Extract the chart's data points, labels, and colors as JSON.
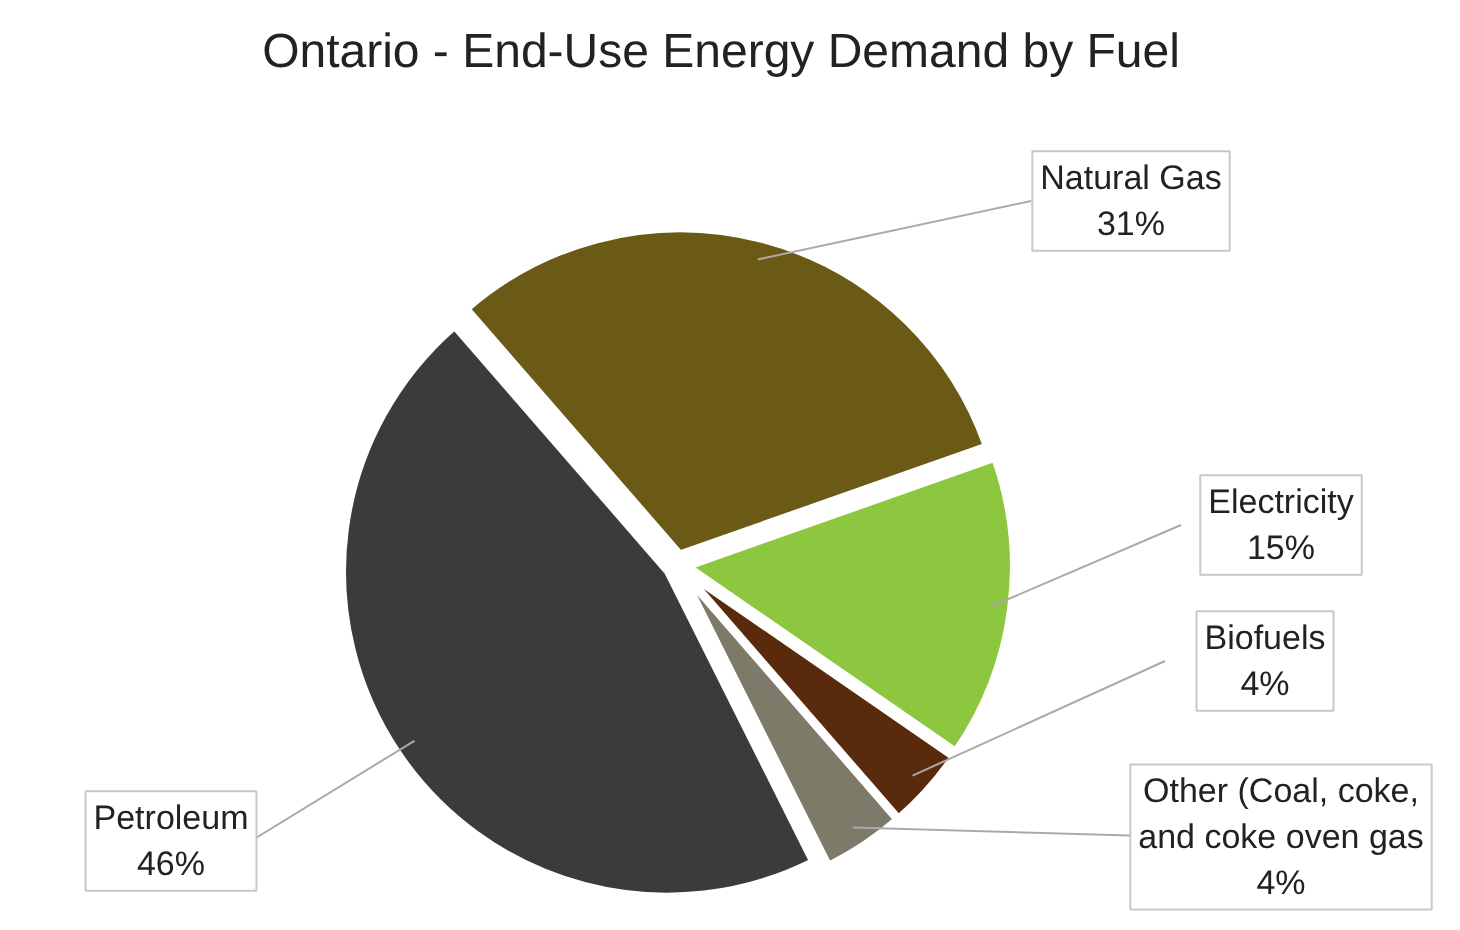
{
  "chart_data": {
    "type": "pie",
    "title": "Ontario - End-Use Energy Demand by Fuel",
    "categories": [
      "Natural Gas",
      "Electricity",
      "Biofuels",
      "Other (Coal, coke, and coke oven gas",
      "Petroleum"
    ],
    "values": [
      31,
      15,
      4,
      4,
      46
    ],
    "value_labels": [
      "31%",
      "15%",
      "4%",
      "4%",
      "46%"
    ],
    "colors": [
      "#6b5a16",
      "#8dc63f",
      "#5a2a0c",
      "#7d7a6a",
      "#3b3b39"
    ]
  }
}
